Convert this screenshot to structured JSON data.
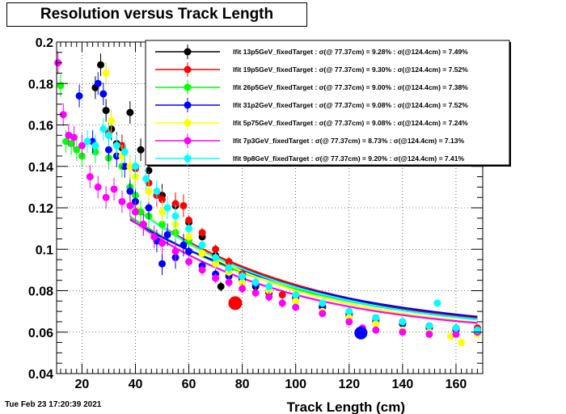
{
  "chart_data": {
    "type": "scatter",
    "title": "Resolution versus Track Length",
    "xlabel": "Track Length (cm)",
    "ylabel": "",
    "xlim": [
      10.5,
      170
    ],
    "ylim": [
      0.04,
      0.2
    ],
    "x_ticks": [
      20,
      40,
      60,
      80,
      100,
      120,
      140,
      160
    ],
    "y_ticks": [
      0.04,
      0.06,
      0.08,
      0.1,
      0.12,
      0.14,
      0.16,
      0.18,
      0.2
    ],
    "grid": true,
    "legend_position": "top-right",
    "timestamp": "Tue Feb 23 17:20:39 2021",
    "series": [
      {
        "name": "lfit 13p5GeV_fixedTarget : σ(@ 77.37cm) = 9.28% : σ(@124.4cm) = 7.49%",
        "color": "#000000",
        "r77": 0.0928,
        "r124": 0.0749,
        "points": [
          [
            25,
            0.178
          ],
          [
            27,
            0.189
          ],
          [
            29,
            0.167
          ],
          [
            31,
            0.158
          ],
          [
            33,
            0.151
          ],
          [
            35,
            0.149
          ],
          [
            38,
            0.166
          ],
          [
            40,
            0.14
          ],
          [
            42,
            0.148
          ],
          [
            45,
            0.138
          ],
          [
            50,
            0.126
          ],
          [
            55,
            0.121
          ],
          [
            60,
            0.113
          ],
          [
            65,
            0.106
          ],
          [
            70,
            0.097
          ],
          [
            72,
            0.082
          ],
          [
            75,
            0.09
          ],
          [
            80,
            0.086
          ],
          [
            85,
            0.082
          ],
          [
            90,
            0.079
          ],
          [
            100,
            0.076
          ],
          [
            110,
            0.072
          ],
          [
            120,
            0.069
          ],
          [
            130,
            0.066
          ],
          [
            140,
            0.064
          ],
          [
            150,
            0.063
          ],
          [
            160,
            0.062
          ],
          [
            168,
            0.061
          ]
        ]
      },
      {
        "name": "lfit 19p5GeV_fixedTarget : σ(@ 77.37cm) = 9.30% : σ(@124.4cm) = 7.52%",
        "color": "#ff0000",
        "r77": 0.093,
        "r124": 0.0752,
        "points": [
          [
            30,
            0.156
          ],
          [
            35,
            0.15
          ],
          [
            40,
            0.139
          ],
          [
            45,
            0.132
          ],
          [
            48,
            0.126
          ],
          [
            50,
            0.124
          ],
          [
            55,
            0.122
          ],
          [
            58,
            0.121
          ],
          [
            60,
            0.114
          ],
          [
            65,
            0.108
          ],
          [
            70,
            0.1
          ],
          [
            75,
            0.094
          ],
          [
            80,
            0.088
          ],
          [
            85,
            0.084
          ],
          [
            90,
            0.08
          ],
          [
            95,
            0.078
          ],
          [
            100,
            0.076
          ],
          [
            110,
            0.073
          ],
          [
            120,
            0.069
          ],
          [
            130,
            0.067
          ],
          [
            140,
            0.065
          ],
          [
            150,
            0.063
          ],
          [
            160,
            0.062
          ],
          [
            168,
            0.062
          ]
        ]
      },
      {
        "name": "lfit 26p5GeV_fixedTarget : σ(@ 77.37cm) = 9.00% : σ(@124.4cm) = 7.38%",
        "color": "#00ff00",
        "r77": 0.09,
        "r124": 0.0738,
        "points": [
          [
            12,
            0.179
          ],
          [
            14,
            0.152
          ],
          [
            16,
            0.151
          ],
          [
            18,
            0.148
          ],
          [
            20,
            0.145
          ],
          [
            25,
            0.147
          ],
          [
            30,
            0.144
          ],
          [
            35,
            0.14
          ],
          [
            38,
            0.13
          ],
          [
            40,
            0.126
          ],
          [
            42,
            0.118
          ],
          [
            45,
            0.116
          ],
          [
            50,
            0.112
          ],
          [
            55,
            0.108
          ],
          [
            60,
            0.104
          ],
          [
            65,
            0.098
          ],
          [
            70,
            0.093
          ],
          [
            75,
            0.089
          ],
          [
            80,
            0.085
          ],
          [
            90,
            0.08
          ],
          [
            100,
            0.075
          ],
          [
            110,
            0.072
          ],
          [
            120,
            0.069
          ],
          [
            130,
            0.066
          ],
          [
            140,
            0.064
          ],
          [
            150,
            0.062
          ],
          [
            160,
            0.061
          ],
          [
            168,
            0.06
          ]
        ]
      },
      {
        "name": "lfit 31p2GeV_fixedTarget : σ(@ 77.37cm) = 9.08% : σ(@124.4cm) = 7.52%",
        "color": "#0000ff",
        "r77": 0.0908,
        "r124": 0.0752,
        "points": [
          [
            19,
            0.174
          ],
          [
            24,
            0.152
          ],
          [
            26,
            0.18
          ],
          [
            28,
            0.175
          ],
          [
            30,
            0.148
          ],
          [
            33,
            0.145
          ],
          [
            36,
            0.14
          ],
          [
            38,
            0.128
          ],
          [
            40,
            0.123
          ],
          [
            43,
            0.112
          ],
          [
            45,
            0.12
          ],
          [
            48,
            0.104
          ],
          [
            50,
            0.093
          ],
          [
            52,
            0.107
          ],
          [
            55,
            0.096
          ],
          [
            58,
            0.102
          ],
          [
            60,
            0.099
          ],
          [
            65,
            0.092
          ],
          [
            70,
            0.088
          ],
          [
            75,
            0.087
          ],
          [
            80,
            0.085
          ],
          [
            85,
            0.083
          ],
          [
            90,
            0.08
          ],
          [
            100,
            0.077
          ],
          [
            110,
            0.072
          ],
          [
            120,
            0.068
          ],
          [
            130,
            0.065
          ],
          [
            140,
            0.064
          ],
          [
            150,
            0.062
          ],
          [
            160,
            0.061
          ],
          [
            168,
            0.061
          ]
        ]
      },
      {
        "name": "lfit 5p75GeV_fixedTarget : σ(@ 77.37cm) = 9.08% : σ(@124.4cm) = 7.24%",
        "color": "#ffff00",
        "r77": 0.0908,
        "r124": 0.0724,
        "points": [
          [
            29,
            0.185
          ],
          [
            31,
            0.162
          ],
          [
            33,
            0.15
          ],
          [
            35,
            0.145
          ],
          [
            38,
            0.14
          ],
          [
            40,
            0.135
          ],
          [
            45,
            0.128
          ],
          [
            50,
            0.118
          ],
          [
            55,
            0.112
          ],
          [
            60,
            0.106
          ],
          [
            65,
            0.098
          ],
          [
            70,
            0.093
          ],
          [
            75,
            0.089
          ],
          [
            80,
            0.084
          ],
          [
            90,
            0.08
          ],
          [
            100,
            0.075
          ],
          [
            110,
            0.07
          ],
          [
            120,
            0.067
          ],
          [
            130,
            0.064
          ],
          [
            140,
            0.061
          ],
          [
            150,
            0.06
          ],
          [
            158,
            0.058
          ],
          [
            162,
            0.055
          ],
          [
            168,
            0.059
          ]
        ]
      },
      {
        "name": "lfit 7p3GeV_fixedTarget : σ(@ 77.37cm) = 8.73% : σ(@124.4cm) = 7.13%",
        "color": "#ff00ff",
        "r77": 0.0873,
        "r124": 0.0713,
        "points": [
          [
            11,
            0.19
          ],
          [
            13,
            0.165
          ],
          [
            15,
            0.155
          ],
          [
            17,
            0.154
          ],
          [
            20,
            0.15
          ],
          [
            23,
            0.135
          ],
          [
            26,
            0.13
          ],
          [
            29,
            0.125
          ],
          [
            32,
            0.129
          ],
          [
            35,
            0.123
          ],
          [
            38,
            0.121
          ],
          [
            40,
            0.118
          ],
          [
            43,
            0.112
          ],
          [
            47,
            0.106
          ],
          [
            50,
            0.103
          ],
          [
            55,
            0.099
          ],
          [
            60,
            0.094
          ],
          [
            65,
            0.09
          ],
          [
            70,
            0.086
          ],
          [
            75,
            0.084
          ],
          [
            80,
            0.081
          ],
          [
            85,
            0.079
          ],
          [
            90,
            0.077
          ],
          [
            95,
            0.074
          ],
          [
            100,
            0.072
          ],
          [
            110,
            0.069
          ],
          [
            120,
            0.065
          ],
          [
            125,
            0.062
          ],
          [
            130,
            0.061
          ],
          [
            140,
            0.06
          ],
          [
            150,
            0.059
          ],
          [
            160,
            0.059
          ],
          [
            168,
            0.06
          ]
        ]
      },
      {
        "name": "lfit 9p8GeV_fixedTarget : σ(@ 77.37cm) = 9.20% : σ(@124.4cm) = 7.41%",
        "color": "#00ffff",
        "r77": 0.092,
        "r124": 0.0741,
        "points": [
          [
            22,
            0.152
          ],
          [
            25,
            0.15
          ],
          [
            28,
            0.158
          ],
          [
            30,
            0.155
          ],
          [
            33,
            0.15
          ],
          [
            36,
            0.147
          ],
          [
            40,
            0.14
          ],
          [
            44,
            0.134
          ],
          [
            48,
            0.128
          ],
          [
            52,
            0.12
          ],
          [
            55,
            0.116
          ],
          [
            60,
            0.11
          ],
          [
            65,
            0.102
          ],
          [
            70,
            0.096
          ],
          [
            75,
            0.091
          ],
          [
            80,
            0.087
          ],
          [
            85,
            0.084
          ],
          [
            90,
            0.082
          ],
          [
            100,
            0.078
          ],
          [
            110,
            0.074
          ],
          [
            120,
            0.07
          ],
          [
            130,
            0.067
          ],
          [
            140,
            0.065
          ],
          [
            150,
            0.063
          ],
          [
            153,
            0.074
          ],
          [
            160,
            0.062
          ],
          [
            168,
            0.061
          ]
        ]
      }
    ]
  }
}
